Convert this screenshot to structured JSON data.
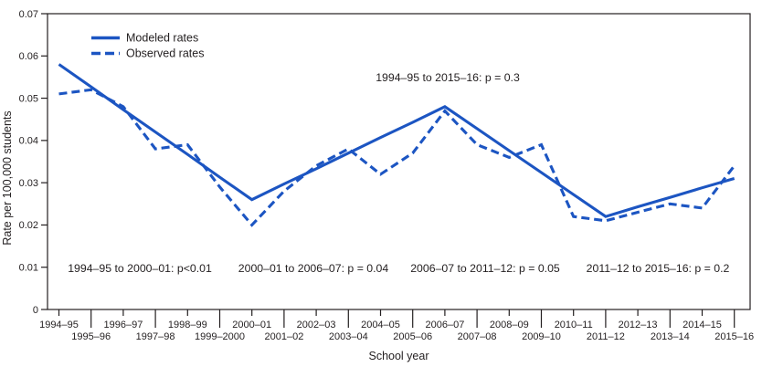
{
  "figure": {
    "y_axis_label": "Rate per 100,000 students",
    "x_axis_label": "School year",
    "legend": [
      {
        "label": "Modeled rates",
        "style": "solid"
      },
      {
        "label": "Observed rates",
        "style": "dashed"
      }
    ],
    "line_color": "#1c55c2",
    "text_color": "#231f20"
  },
  "chart_data": {
    "type": "line",
    "title": "",
    "xlabel": "School year",
    "ylabel": "Rate per 100,000 students",
    "ylim": [
      0,
      0.07
    ],
    "yticks": [
      0,
      0.01,
      0.02,
      0.03,
      0.04,
      0.05,
      0.06,
      0.07
    ],
    "grid": false,
    "legend_position": "top-left-inside",
    "categories": [
      "1994–95",
      "1995–96",
      "1996–97",
      "1997–98",
      "1998–99",
      "1999–2000",
      "2000–01",
      "2001–02",
      "2002–03",
      "2003–04",
      "2004–05",
      "2005–06",
      "2006–07",
      "2007–08",
      "2008–09",
      "2009–10",
      "2010–11",
      "2011–12",
      "2012–13",
      "2013–14",
      "2014–15",
      "2015–16"
    ],
    "series": [
      {
        "name": "Modeled rates",
        "style": "solid",
        "values": [
          0.058,
          0.0527,
          0.0473,
          0.042,
          0.0367,
          0.0313,
          0.026,
          0.0297,
          0.0333,
          0.037,
          0.0407,
          0.0443,
          0.048,
          0.0428,
          0.0376,
          0.0324,
          0.0272,
          0.022,
          0.0243,
          0.0265,
          0.0288,
          0.031
        ]
      },
      {
        "name": "Observed rates",
        "style": "dashed",
        "values": [
          0.051,
          0.052,
          0.048,
          0.038,
          0.039,
          0.029,
          0.02,
          0.028,
          0.034,
          0.038,
          0.032,
          0.037,
          0.047,
          0.039,
          0.036,
          0.039,
          0.022,
          0.021,
          0.023,
          0.025,
          0.024,
          0.034
        ]
      }
    ],
    "modeled_joinpoints": [
      {
        "year": "1994–95",
        "value": 0.058
      },
      {
        "year": "2000–01",
        "value": 0.026
      },
      {
        "year": "2006–07",
        "value": 0.048
      },
      {
        "year": "2011–12",
        "value": 0.022
      },
      {
        "year": "2015–16",
        "value": 0.031
      }
    ],
    "annotations": [
      {
        "text": "1994–95 to 2015–16: p = 0.3",
        "anchor": "top-center"
      },
      {
        "text": "1994–95 to 2000–01: p<0.01",
        "anchor": "bottom-1"
      },
      {
        "text": "2000–01 to 2006–07: p = 0.04",
        "anchor": "bottom-2"
      },
      {
        "text": "2006–07 to 2011–12: p = 0.05",
        "anchor": "bottom-3"
      },
      {
        "text": "2011–12 to 2015–16: p = 0.2",
        "anchor": "bottom-4"
      }
    ]
  }
}
